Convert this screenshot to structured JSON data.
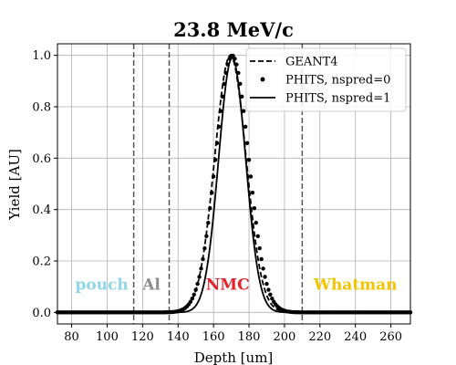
{
  "chart_data": {
    "type": "line",
    "title": "23.8 MeV/c",
    "xlabel": "Depth [um]",
    "ylabel": "Yield [AU]",
    "xlim": [
      72,
      271
    ],
    "ylim": [
      -0.045,
      1.045
    ],
    "xticks": [
      "80",
      "100",
      "120",
      "140",
      "160",
      "180",
      "200",
      "220",
      "240",
      "260"
    ],
    "yticks": [
      "0.0",
      "0.2",
      "0.4",
      "0.6",
      "0.8",
      "1.0"
    ],
    "grid": true,
    "legend_position": "top-right",
    "vlines": [
      115,
      135,
      210
    ],
    "regions": [
      {
        "label": "pouch",
        "x": 97,
        "y": 0.11,
        "color": "#8fd6e6"
      },
      {
        "label": "Al",
        "x": 125,
        "y": 0.11,
        "color": "#8c8c8c"
      },
      {
        "label": "NMC",
        "x": 168,
        "y": 0.11,
        "color": "#e8202a"
      },
      {
        "label": "Whatman",
        "x": 240,
        "y": 0.11,
        "color": "#f5c400"
      }
    ],
    "series": [
      {
        "name": "GEANT4",
        "style": "dashed",
        "color": "#000000",
        "peak_x": 169.5,
        "peak_y": 1.0,
        "sigma": 8.8
      },
      {
        "name": "PHITS, nspred=0",
        "style": "points",
        "color": "#000000",
        "peak_x": 170.5,
        "peak_y": 1.0,
        "sigma": 9.3
      },
      {
        "name": "PHITS, nspred=1",
        "style": "solid",
        "color": "#000000",
        "peak_x": 170.5,
        "peak_y": 0.99,
        "sigma": 7.6
      }
    ]
  }
}
